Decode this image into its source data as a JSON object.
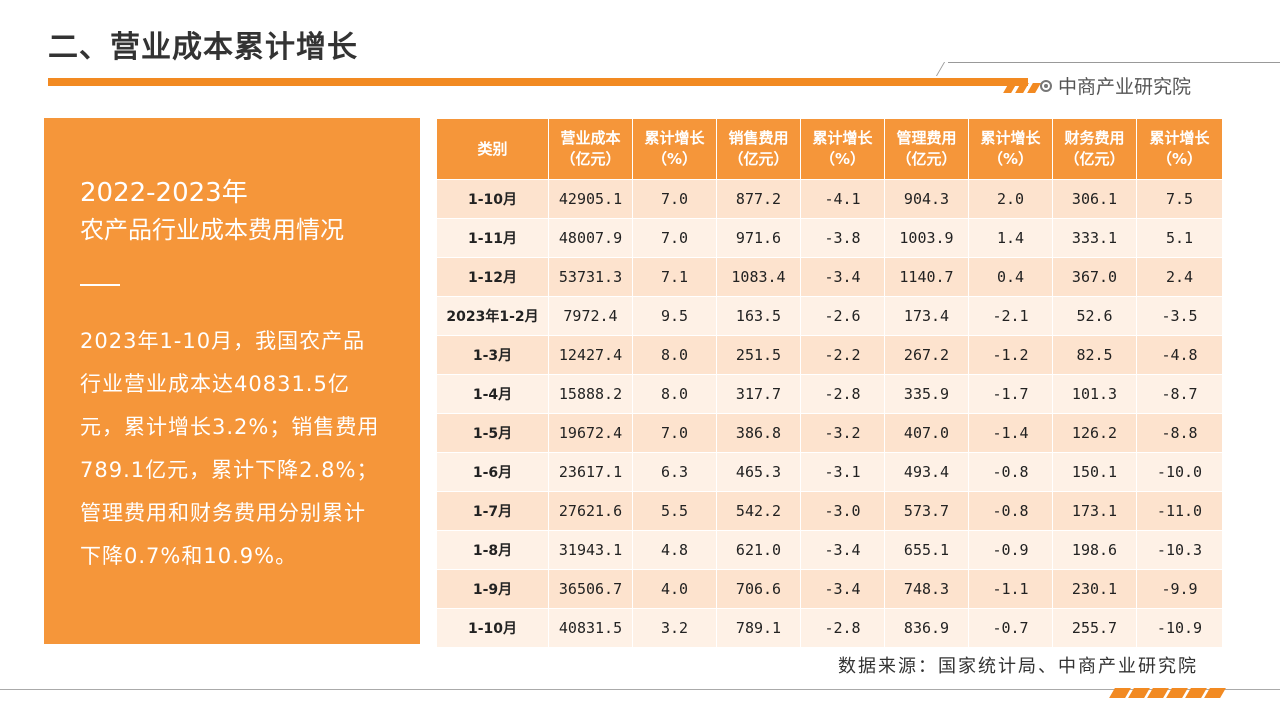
{
  "header": {
    "title": "二、营业成本累计增长",
    "brand": "中商产业研究院"
  },
  "left_panel": {
    "year": "2022-2023年",
    "subtitle": "农产品行业成本费用情况",
    "body": "2023年1-10月，我国农产品行业营业成本达40831.5亿元，累计增长3.2%；销售费用789.1亿元，累计下降2.8%；管理费用和财务费用分别累计下降0.7%和10.9%。"
  },
  "table": {
    "headers": [
      [
        "类别",
        ""
      ],
      [
        "营业成本",
        "（亿元）"
      ],
      [
        "累计增长",
        "（%）"
      ],
      [
        "销售费用",
        "（亿元）"
      ],
      [
        "累计增长",
        "（%）"
      ],
      [
        "管理费用",
        "（亿元）"
      ],
      [
        "累计增长",
        "（%）"
      ],
      [
        "财务费用",
        "（亿元）"
      ],
      [
        "累计增长",
        "（%）"
      ]
    ],
    "rows": [
      [
        "1-10月",
        "42905.1",
        "7.0",
        "877.2",
        "-4.1",
        "904.3",
        "2.0",
        "306.1",
        "7.5"
      ],
      [
        "1-11月",
        "48007.9",
        "7.0",
        "971.6",
        "-3.8",
        "1003.9",
        "1.4",
        "333.1",
        "5.1"
      ],
      [
        "1-12月",
        "53731.3",
        "7.1",
        "1083.4",
        "-3.4",
        "1140.7",
        "0.4",
        "367.0",
        "2.4"
      ],
      [
        "2023年1-2月",
        "7972.4",
        "9.5",
        "163.5",
        "-2.6",
        "173.4",
        "-2.1",
        "52.6",
        "-3.5"
      ],
      [
        "1-3月",
        "12427.4",
        "8.0",
        "251.5",
        "-2.2",
        "267.2",
        "-1.2",
        "82.5",
        "-4.8"
      ],
      [
        "1-4月",
        "15888.2",
        "8.0",
        "317.7",
        "-2.8",
        "335.9",
        "-1.7",
        "101.3",
        "-8.7"
      ],
      [
        "1-5月",
        "19672.4",
        "7.0",
        "386.8",
        "-3.2",
        "407.0",
        "-1.4",
        "126.2",
        "-8.8"
      ],
      [
        "1-6月",
        "23617.1",
        "6.3",
        "465.3",
        "-3.1",
        "493.4",
        "-0.8",
        "150.1",
        "-10.0"
      ],
      [
        "1-7月",
        "27621.6",
        "5.5",
        "542.2",
        "-3.0",
        "573.7",
        "-0.8",
        "173.1",
        "-11.0"
      ],
      [
        "1-8月",
        "31943.1",
        "4.8",
        "621.0",
        "-3.4",
        "655.1",
        "-0.9",
        "198.6",
        "-10.3"
      ],
      [
        "1-9月",
        "36506.7",
        "4.0",
        "706.6",
        "-3.4",
        "748.3",
        "-1.1",
        "230.1",
        "-9.9"
      ],
      [
        "1-10月",
        "40831.5",
        "3.2",
        "789.1",
        "-2.8",
        "836.9",
        "-0.7",
        "255.7",
        "-10.9"
      ]
    ]
  },
  "footer": {
    "source": "数据来源：国家统计局、中商产业研究院"
  },
  "colors": {
    "accent": "#f28a22",
    "panel": "#f5963a",
    "row_odd": "#fde3ce",
    "row_even": "#fef1e6"
  },
  "icons": {
    "brand_logo": "circle-dot-icon"
  }
}
